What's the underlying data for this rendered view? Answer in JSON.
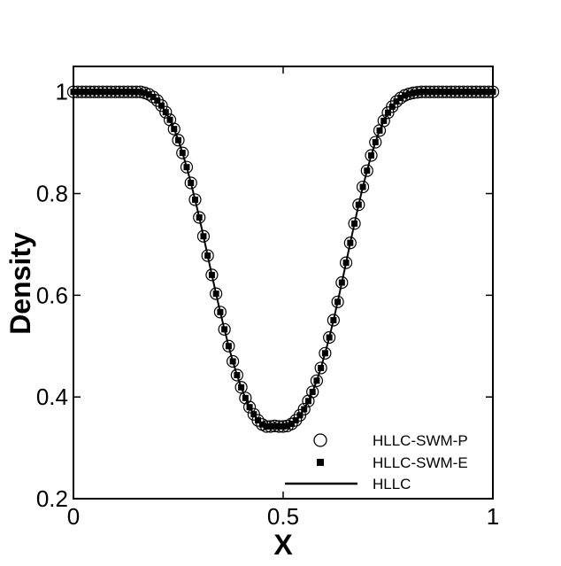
{
  "chart_data": {
    "type": "line",
    "title": "",
    "xlabel": "X",
    "ylabel": "Density",
    "xlim": [
      0,
      1
    ],
    "ylim": [
      0.2,
      1.05
    ],
    "xticks": [
      0,
      0.5,
      1
    ],
    "xtick_labels": [
      "0",
      "0.5",
      "1"
    ],
    "yticks": [
      0.2,
      0.4,
      0.6,
      0.8,
      1.0
    ],
    "ytick_labels": [
      "0.2",
      "0.4",
      "0.6",
      "0.8",
      "1"
    ],
    "grid": false,
    "legend_position": "bottom-right",
    "x": [
      0.0,
      0.01,
      0.02,
      0.03,
      0.04,
      0.05,
      0.06,
      0.07,
      0.08,
      0.09,
      0.1,
      0.11,
      0.12,
      0.13,
      0.14,
      0.15,
      0.16,
      0.17,
      0.18,
      0.19,
      0.2,
      0.21,
      0.22,
      0.23,
      0.24,
      0.25,
      0.26,
      0.27,
      0.28,
      0.29,
      0.3,
      0.31,
      0.32,
      0.33,
      0.34,
      0.35,
      0.36,
      0.37,
      0.38,
      0.39,
      0.4,
      0.41,
      0.42,
      0.43,
      0.44,
      0.45,
      0.46,
      0.47,
      0.48,
      0.49,
      0.5,
      0.51,
      0.52,
      0.53,
      0.54,
      0.55,
      0.56,
      0.57,
      0.58,
      0.59,
      0.6,
      0.61,
      0.62,
      0.63,
      0.64,
      0.65,
      0.66,
      0.67,
      0.68,
      0.69,
      0.7,
      0.71,
      0.72,
      0.73,
      0.74,
      0.75,
      0.76,
      0.77,
      0.78,
      0.79,
      0.8,
      0.81,
      0.82,
      0.83,
      0.84,
      0.85,
      0.86,
      0.87,
      0.88,
      0.89,
      0.9,
      0.91,
      0.92,
      0.93,
      0.94,
      0.95,
      0.96,
      0.97,
      0.98,
      0.99,
      1.0
    ],
    "series": [
      {
        "name": "HLLC-SWM-P",
        "marker": "open-circle",
        "color": "#000000",
        "values": [
          1.0,
          1.0,
          1.0,
          1.0,
          1.0,
          1.0,
          1.0,
          1.0,
          1.0,
          1.0,
          1.0,
          1.0,
          1.0,
          1.0,
          1.0,
          1.0,
          1.0,
          0.998,
          0.995,
          0.99,
          0.983,
          0.973,
          0.96,
          0.945,
          0.927,
          0.905,
          0.88,
          0.852,
          0.821,
          0.788,
          0.753,
          0.716,
          0.678,
          0.64,
          0.603,
          0.567,
          0.533,
          0.5,
          0.47,
          0.443,
          0.419,
          0.398,
          0.38,
          0.366,
          0.354,
          0.346,
          0.342,
          0.342,
          0.343,
          0.342,
          0.342,
          0.343,
          0.347,
          0.354,
          0.364,
          0.376,
          0.392,
          0.41,
          0.432,
          0.457,
          0.486,
          0.517,
          0.551,
          0.587,
          0.625,
          0.664,
          0.703,
          0.741,
          0.778,
          0.813,
          0.845,
          0.875,
          0.901,
          0.924,
          0.943,
          0.959,
          0.971,
          0.981,
          0.988,
          0.993,
          0.996,
          0.998,
          0.999,
          1.0,
          1.0,
          1.0,
          1.0,
          1.0,
          1.0,
          1.0,
          1.0,
          1.0,
          1.0,
          1.0,
          1.0,
          1.0,
          1.0,
          1.0,
          1.0,
          1.0,
          1.0
        ]
      },
      {
        "name": "HLLC-SWM-E",
        "marker": "filled-square",
        "color": "#000000",
        "values": [
          1.0,
          1.0,
          1.0,
          1.0,
          1.0,
          1.0,
          1.0,
          1.0,
          1.0,
          1.0,
          1.0,
          1.0,
          1.0,
          1.0,
          1.0,
          1.0,
          1.0,
          0.998,
          0.995,
          0.99,
          0.983,
          0.973,
          0.96,
          0.945,
          0.927,
          0.905,
          0.88,
          0.852,
          0.821,
          0.788,
          0.753,
          0.716,
          0.678,
          0.64,
          0.603,
          0.567,
          0.533,
          0.5,
          0.47,
          0.443,
          0.419,
          0.398,
          0.38,
          0.366,
          0.354,
          0.346,
          0.342,
          0.342,
          0.343,
          0.342,
          0.342,
          0.343,
          0.347,
          0.354,
          0.364,
          0.376,
          0.392,
          0.41,
          0.432,
          0.457,
          0.486,
          0.517,
          0.551,
          0.587,
          0.625,
          0.664,
          0.703,
          0.741,
          0.778,
          0.813,
          0.845,
          0.875,
          0.901,
          0.924,
          0.943,
          0.959,
          0.971,
          0.981,
          0.988,
          0.993,
          0.996,
          0.998,
          0.999,
          1.0,
          1.0,
          1.0,
          1.0,
          1.0,
          1.0,
          1.0,
          1.0,
          1.0,
          1.0,
          1.0,
          1.0,
          1.0,
          1.0,
          1.0,
          1.0,
          1.0,
          1.0
        ]
      },
      {
        "name": "HLLC",
        "marker": "solid-line",
        "color": "#000000",
        "values": [
          1.0,
          1.0,
          1.0,
          1.0,
          1.0,
          1.0,
          1.0,
          1.0,
          1.0,
          1.0,
          1.0,
          1.0,
          1.0,
          1.0,
          1.0,
          1.0,
          1.0,
          0.998,
          0.995,
          0.99,
          0.983,
          0.973,
          0.96,
          0.945,
          0.927,
          0.905,
          0.88,
          0.852,
          0.821,
          0.788,
          0.753,
          0.716,
          0.678,
          0.64,
          0.603,
          0.567,
          0.533,
          0.5,
          0.47,
          0.443,
          0.419,
          0.398,
          0.38,
          0.366,
          0.354,
          0.346,
          0.342,
          0.342,
          0.343,
          0.342,
          0.342,
          0.343,
          0.347,
          0.354,
          0.364,
          0.376,
          0.392,
          0.41,
          0.432,
          0.457,
          0.486,
          0.517,
          0.551,
          0.587,
          0.625,
          0.664,
          0.703,
          0.741,
          0.778,
          0.813,
          0.845,
          0.875,
          0.901,
          0.924,
          0.943,
          0.959,
          0.971,
          0.981,
          0.988,
          0.993,
          0.996,
          0.998,
          0.999,
          1.0,
          1.0,
          1.0,
          1.0,
          1.0,
          1.0,
          1.0,
          1.0,
          1.0,
          1.0,
          1.0,
          1.0,
          1.0,
          1.0,
          1.0,
          1.0,
          1.0,
          1.0
        ]
      }
    ]
  }
}
